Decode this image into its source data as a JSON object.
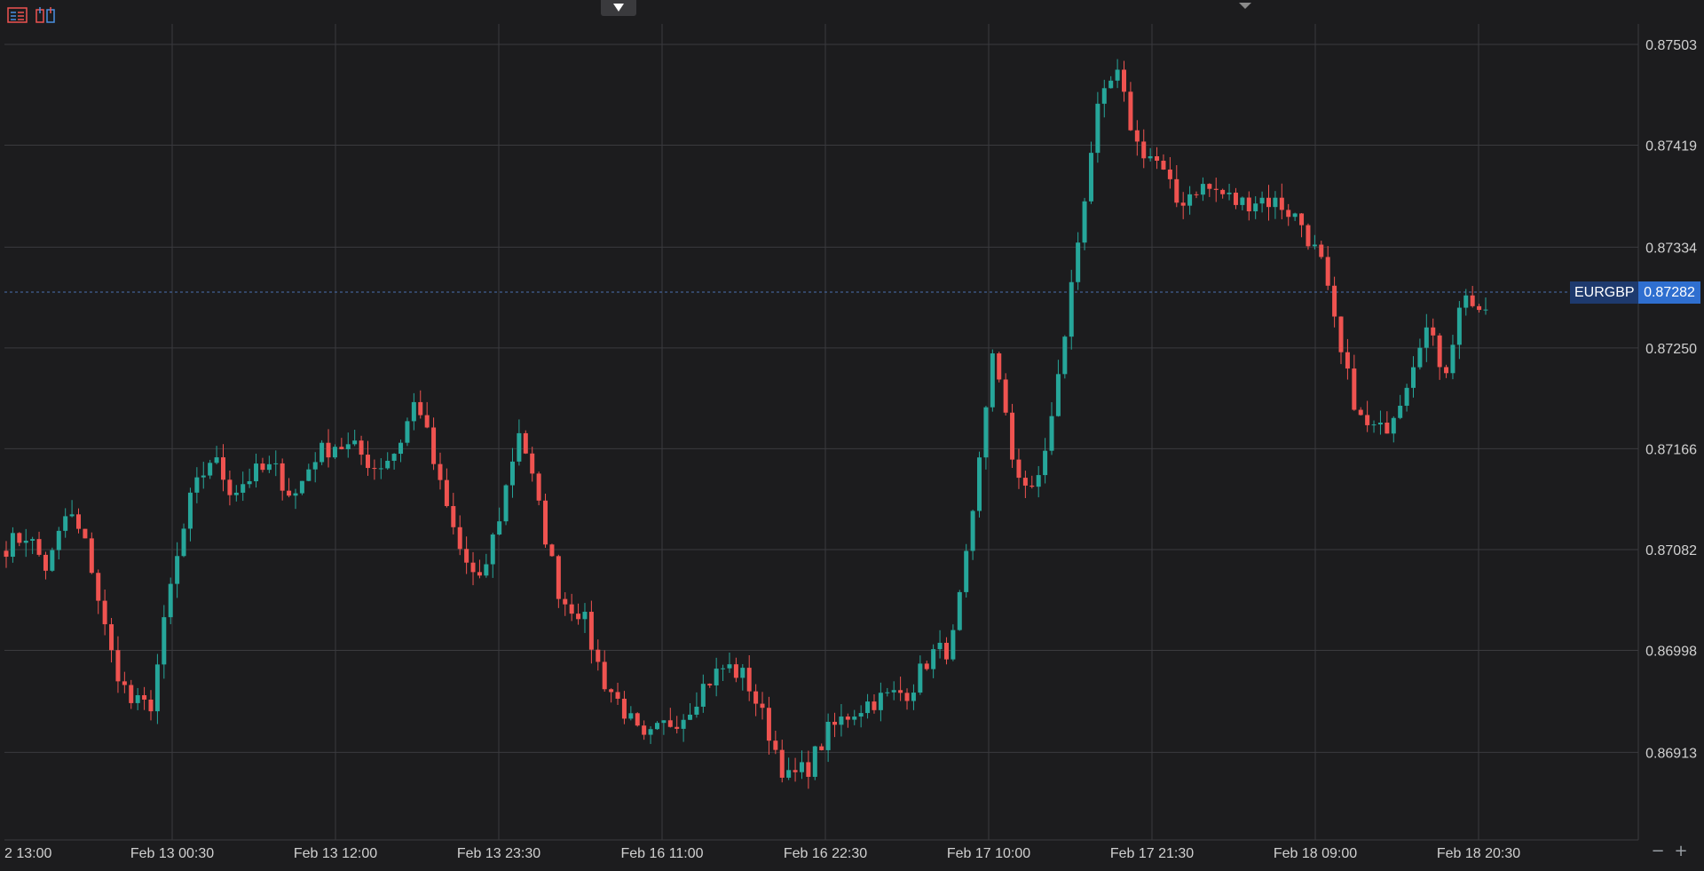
{
  "symbol": "EURGBP",
  "last_price_label": "0.87282",
  "toolbar": {
    "icons": [
      "list-icon",
      "indicators-icon"
    ]
  },
  "zoom": {
    "out": "−",
    "in": "+"
  },
  "colors": {
    "up": "#26a69a",
    "down": "#ef5350",
    "background": "#1c1c1e",
    "grid": "#3a3a3e",
    "price_line": "#4a6fb0"
  },
  "chart_data": {
    "type": "candlestick",
    "symbol": "EURGBP",
    "y_ticks": [
      "0.87503",
      "0.87419",
      "0.87334",
      "0.87250",
      "0.87166",
      "0.87082",
      "0.86998",
      "0.86913"
    ],
    "x_ticks": [
      "2 13:00",
      "Feb 13 00:30",
      "Feb 13 12:00",
      "Feb 13 23:30",
      "Feb 16 11:00",
      "Feb 16 22:30",
      "Feb 17 10:00",
      "Feb 17 21:30",
      "Feb 18 09:00",
      "Feb 18 20:30"
    ],
    "ylim": [
      0.8684,
      0.8752
    ],
    "last_price": 0.87282,
    "grid": true,
    "anchors": [
      0.87085,
      0.87095,
      0.87065,
      0.87115,
      0.8708,
      0.87,
      0.86955,
      0.8695,
      0.8705,
      0.87125,
      0.8716,
      0.8713,
      0.87145,
      0.8715,
      0.87125,
      0.8716,
      0.8717,
      0.87165,
      0.8715,
      0.87165,
      0.8721,
      0.8714,
      0.87085,
      0.8705,
      0.8711,
      0.87185,
      0.8711,
      0.8704,
      0.8703,
      0.86975,
      0.8695,
      0.8692,
      0.86935,
      0.86945,
      0.8697,
      0.86985,
      0.86975,
      0.86935,
      0.8689,
      0.869,
      0.8693,
      0.86945,
      0.86955,
      0.8696,
      0.86965,
      0.86995,
      0.87,
      0.871,
      0.8725,
      0.87155,
      0.87125,
      0.872,
      0.8732,
      0.8744,
      0.8748,
      0.8742,
      0.87405,
      0.8737,
      0.87385,
      0.8738,
      0.8737,
      0.87375,
      0.8737,
      0.87355,
      0.8732,
      0.8724,
      0.87185,
      0.8718,
      0.87215,
      0.8727,
      0.8723,
      0.873,
      0.8726
    ]
  }
}
